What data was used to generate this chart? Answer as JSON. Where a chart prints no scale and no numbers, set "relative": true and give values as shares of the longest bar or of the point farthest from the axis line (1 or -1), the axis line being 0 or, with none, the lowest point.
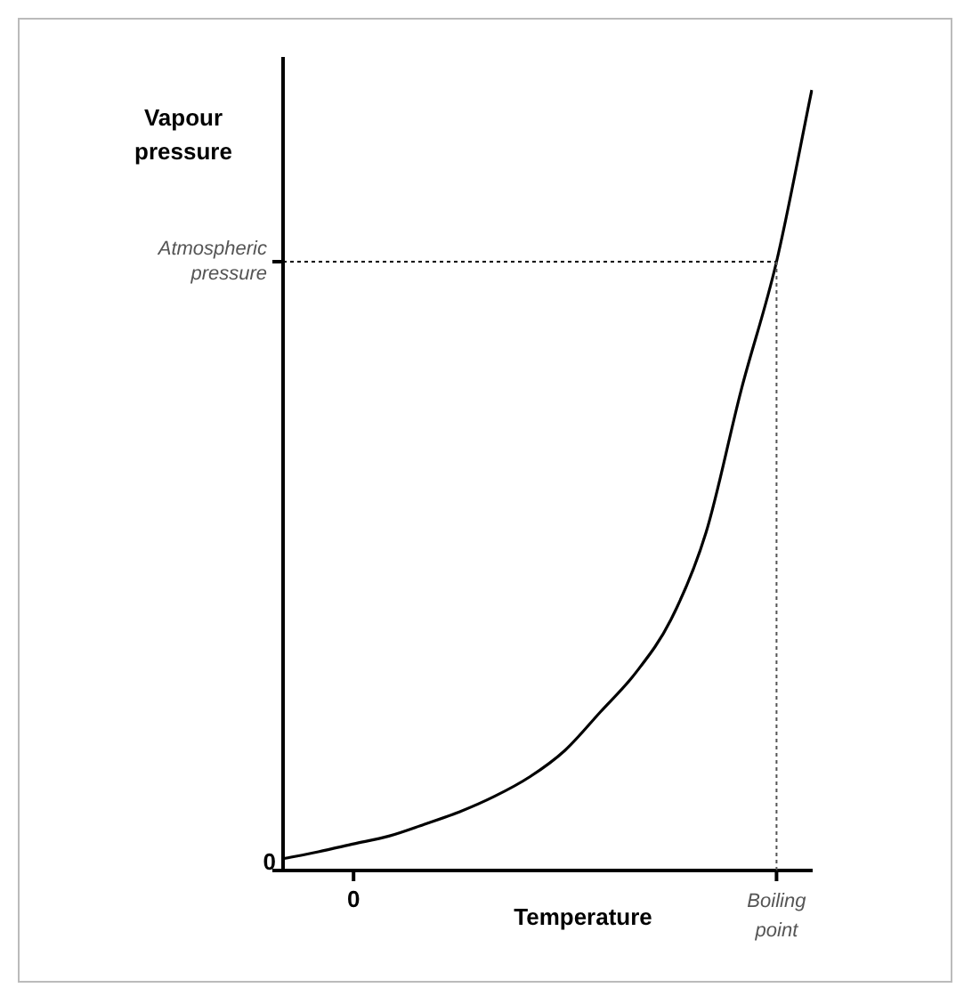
{
  "chart_data": {
    "type": "line",
    "relative": true,
    "xlabel": "Temperature",
    "ylabel": "Vapour pressure",
    "categories": [
      null,
      null,
      "0",
      null,
      null,
      null,
      null,
      null,
      null,
      null,
      null,
      null,
      null,
      null,
      "Boiling point",
      null
    ],
    "series": [
      {
        "color": "#000000",
        "values": [
          0.015,
          0.024,
          0.034,
          0.044,
          0.059,
          0.075,
          0.095,
          0.12,
          0.154,
          0.203,
          0.253,
          0.321,
          0.433,
          0.616,
          0.78,
          1
        ]
      }
    ],
    "ref_lines": [
      {
        "axis": "y",
        "value": 0.78,
        "label": "Atmospheric pressure",
        "color": "#000000",
        "line_style": "dotted"
      },
      {
        "axis": "x",
        "value": "Boiling point",
        "color": "#555555",
        "line_style": "dotted"
      },
      {
        "axis": "y",
        "value": 0,
        "label": "0",
        "color": "#000000",
        "line_style": "solid"
      }
    ],
    "grid": false,
    "legend": false,
    "marker": "none",
    "line_style": "solid"
  }
}
